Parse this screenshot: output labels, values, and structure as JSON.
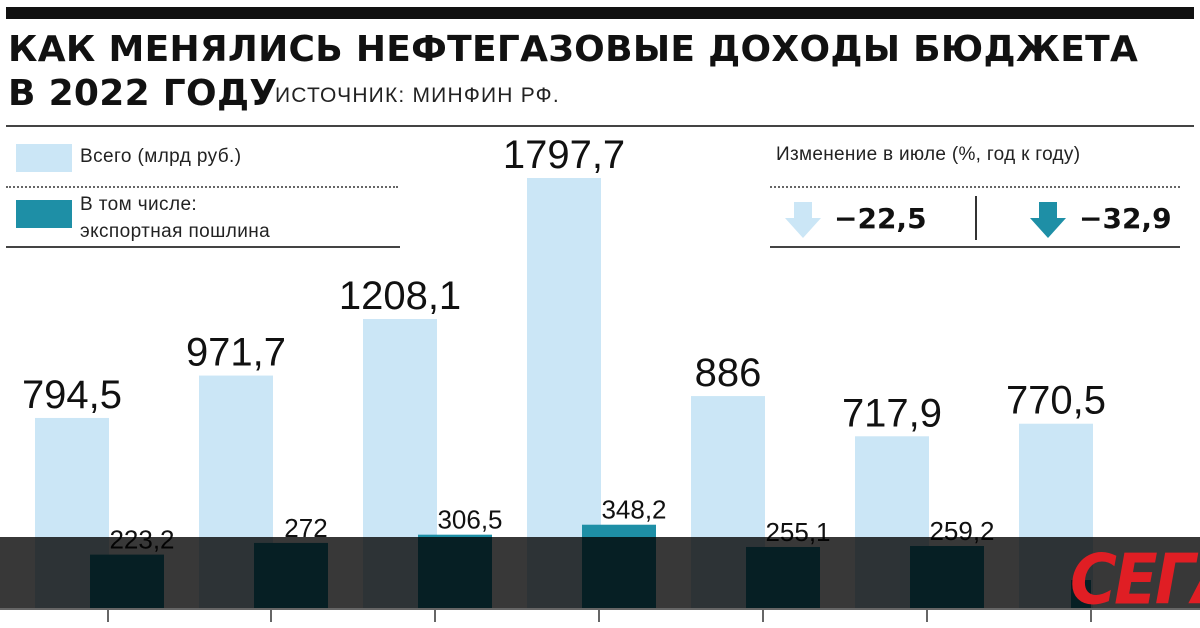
{
  "header": {
    "title": "КАК МЕНЯЛИСЬ НЕФТЕГАЗОВЫЕ ДОХОДЫ БЮДЖЕТА В 2022 ГОДУ",
    "source": "ИСТОЧНИК: МИНФИН РФ."
  },
  "legend": {
    "total_label": "Всего (млрд руб.)",
    "duty_label_1": "В том числе:",
    "duty_label_2": "экспортная пошлина"
  },
  "change": {
    "title": "Изменение в июле (%, год к году)",
    "total_value": "−22,5",
    "duty_value": "−32,9"
  },
  "logo": {
    "text": "СЕГА"
  },
  "colors": {
    "total": "#cbe6f6",
    "duty": "#1e8fa6",
    "text": "#111111",
    "logo": "#e01e24"
  },
  "chart_data": {
    "type": "bar",
    "categories": [
      "",
      "",
      "",
      "",
      "",
      "",
      ""
    ],
    "series": [
      {
        "name": "Всего (млрд руб.)",
        "values": [
          794.5,
          971.7,
          1208.1,
          1797.7,
          886,
          717.9,
          770.5
        ]
      },
      {
        "name": "В том числе: экспортная пошлина",
        "values": [
          223.2,
          272,
          306.5,
          348.2,
          255.1,
          259.2,
          null
        ]
      }
    ],
    "value_labels": {
      "total": [
        "794,5",
        "971,7",
        "1208,1",
        "1797,7",
        "886",
        "717,9",
        "770,5"
      ],
      "duty": [
        "223,2",
        "272",
        "306,5",
        "348,2",
        "255,1",
        "259,2",
        ""
      ]
    },
    "title": "КАК МЕНЯЛИСЬ НЕФТЕГАЗОВЫЕ ДОХОДЫ БЮДЖЕТА В 2022 ГОДУ",
    "xlabel": "",
    "ylabel": "",
    "ylim": [
      0,
      2000
    ],
    "grid": false,
    "legend_position": "top-left"
  }
}
